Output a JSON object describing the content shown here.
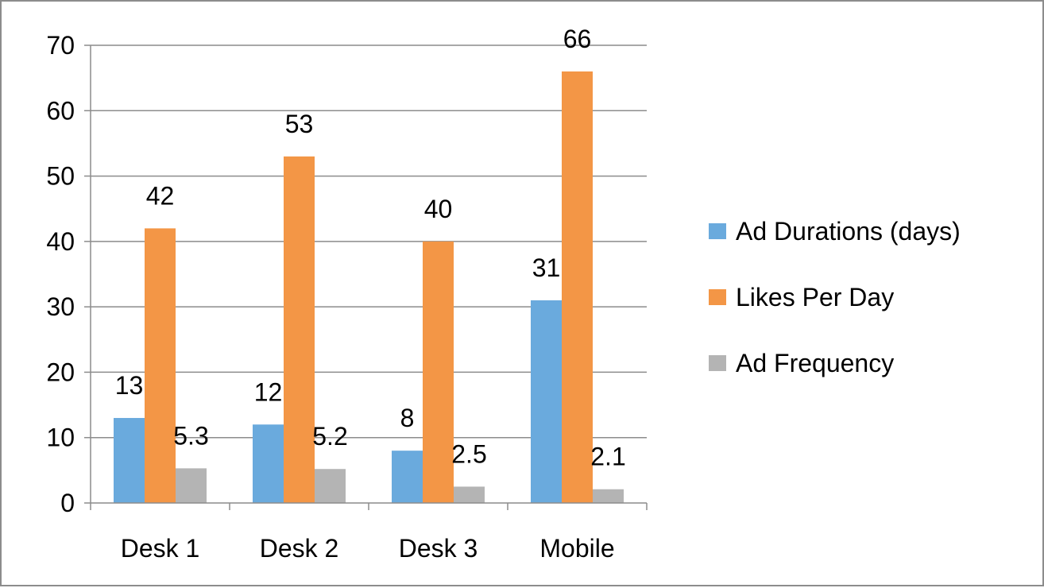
{
  "chart_data": {
    "type": "bar",
    "categories": [
      "Desk 1",
      "Desk 2",
      "Desk 3",
      "Mobile"
    ],
    "series": [
      {
        "name": "Ad Durations (days)",
        "values": [
          13,
          12,
          8,
          31
        ],
        "labels": [
          "13",
          "12",
          "8",
          "31"
        ],
        "color": "#6aaadd"
      },
      {
        "name": "Likes Per Day",
        "values": [
          42,
          53,
          40,
          66
        ],
        "labels": [
          "42",
          "53",
          "40",
          "66"
        ],
        "color": "#f39646"
      },
      {
        "name": "Ad Frequency",
        "values": [
          5.3,
          5.2,
          2.5,
          2.1
        ],
        "labels": [
          "5.3",
          "5.2",
          "2.5",
          "2.1"
        ],
        "color": "#b4b4b4"
      }
    ],
    "y_ticks": [
      "0",
      "10",
      "20",
      "30",
      "40",
      "50",
      "60",
      "70"
    ],
    "ylim": [
      0,
      70
    ],
    "title": "",
    "xlabel": "",
    "ylabel": "",
    "grid": true,
    "legend_position": "right",
    "gridline_color": "#8c8c8c",
    "axis_color": "#8c8c8c"
  }
}
